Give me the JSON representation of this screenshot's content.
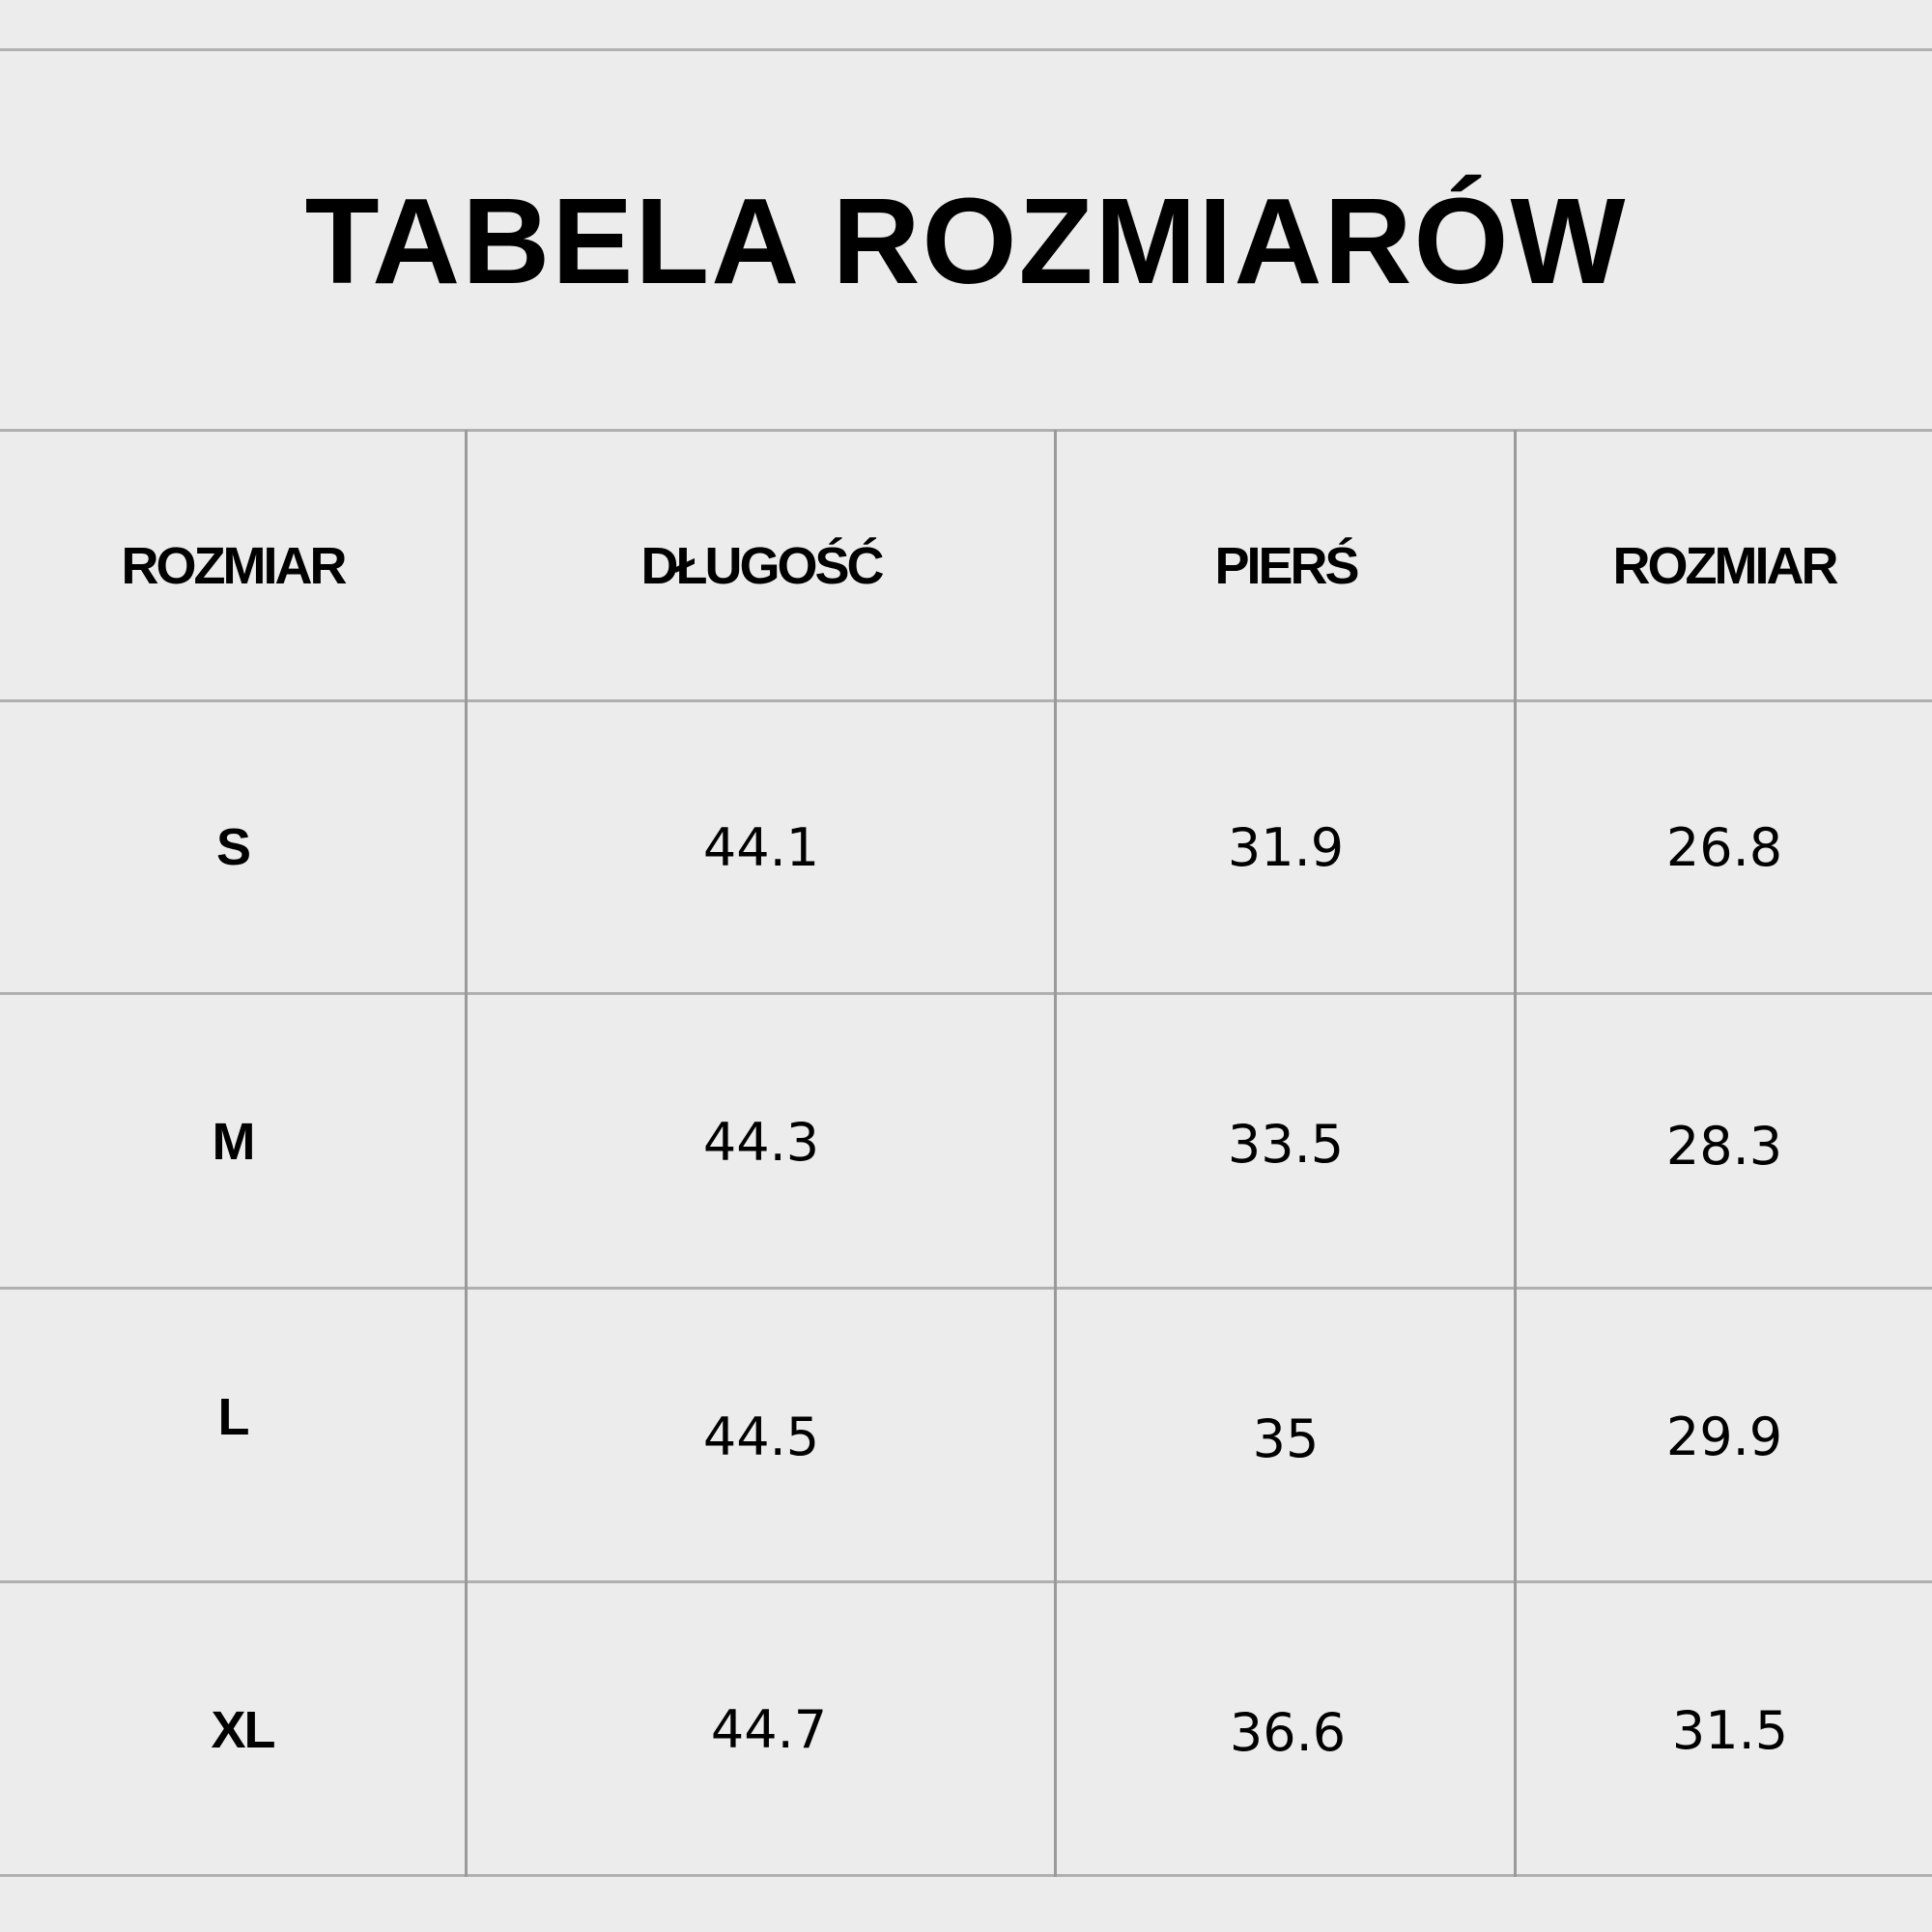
{
  "title": "TABELA ROZMIARÓW",
  "headers": [
    "ROZMIAR",
    "DŁUGOŚĆ",
    "PIERŚ",
    "ROZMIAR"
  ],
  "rows": [
    [
      "S",
      "44.1",
      "31.9",
      "26.8"
    ],
    [
      "M",
      "44.3",
      "33.5",
      "28.3"
    ],
    [
      "L",
      "44.5",
      "35",
      "29.9"
    ],
    [
      "XL",
      "44.7",
      "36.6",
      "31.5"
    ]
  ],
  "colors": {
    "background": "#ececec",
    "grid": "#b0b0b0",
    "text": "#000000"
  }
}
